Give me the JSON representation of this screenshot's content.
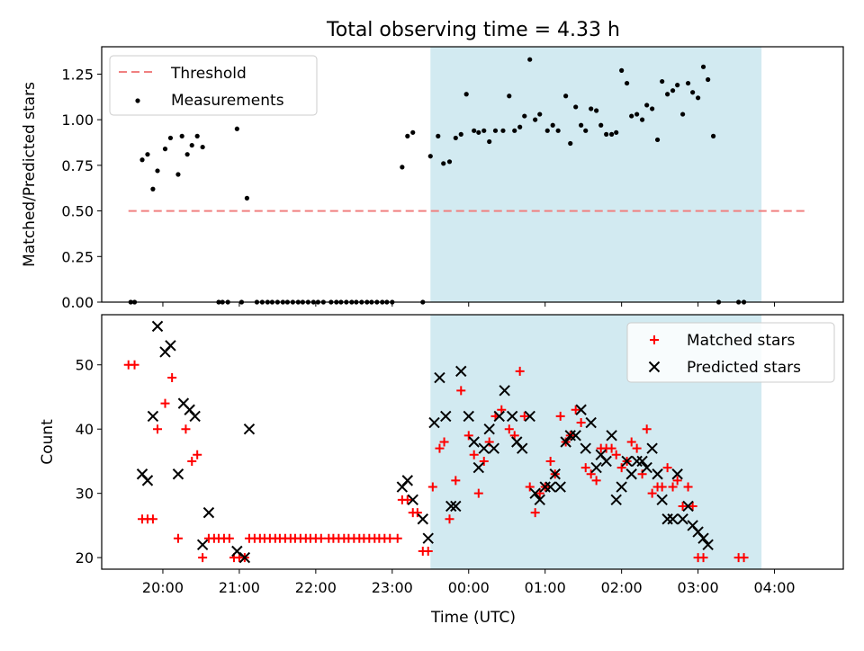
{
  "chart_data": {
    "title": "Total observing time = 4.33 h",
    "xlabel": "Time (UTC)",
    "x_ticks": [
      {
        "h": 20,
        "label": "20:00"
      },
      {
        "h": 21,
        "label": "21:00"
      },
      {
        "h": 22,
        "label": "22:00"
      },
      {
        "h": 23,
        "label": "23:00"
      },
      {
        "h": 24,
        "label": "00:00"
      },
      {
        "h": 25,
        "label": "01:00"
      },
      {
        "h": 26,
        "label": "02:00"
      },
      {
        "h": 27,
        "label": "03:00"
      },
      {
        "h": 28,
        "label": "04:00"
      }
    ],
    "x_unit_note": "time in hours UTC; values above 24 are after midnight",
    "xlim": [
      19.2,
      28.9
    ],
    "shaded_span": {
      "x0": 23.5,
      "x1": 27.83,
      "color": "#add8e6"
    },
    "panels": [
      {
        "type": "scatter",
        "ylabel": "Matched/Predicted stars",
        "ylim": [
          0,
          1.4
        ],
        "yticks": [
          "0.00",
          "0.25",
          "0.50",
          "0.75",
          "1.00",
          "1.25"
        ],
        "legend": {
          "placement": "top-left",
          "threshold_label": "Threshold",
          "measurements_label": "Measurements"
        },
        "threshold": {
          "y": 0.5,
          "x0": 19.55,
          "x1": 28.45,
          "color": "#f08080"
        },
        "measurements": [
          [
            19.58,
            0
          ],
          [
            19.63,
            0
          ],
          [
            19.73,
            0.78
          ],
          [
            19.8,
            0.81
          ],
          [
            19.87,
            0.62
          ],
          [
            19.93,
            0.72
          ],
          [
            20.03,
            0.84
          ],
          [
            20.1,
            0.9
          ],
          [
            20.2,
            0.7
          ],
          [
            20.25,
            0.91
          ],
          [
            20.32,
            0.81
          ],
          [
            20.38,
            0.86
          ],
          [
            20.45,
            0.91
          ],
          [
            20.52,
            0.85
          ],
          [
            20.73,
            0
          ],
          [
            20.78,
            0
          ],
          [
            20.85,
            0
          ],
          [
            20.97,
            0.95
          ],
          [
            21.03,
            0
          ],
          [
            21.1,
            0.57
          ],
          [
            21.23,
            0
          ],
          [
            21.3,
            0
          ],
          [
            21.37,
            0
          ],
          [
            21.43,
            0
          ],
          [
            21.5,
            0
          ],
          [
            21.57,
            0
          ],
          [
            21.63,
            0
          ],
          [
            21.7,
            0
          ],
          [
            21.77,
            0
          ],
          [
            21.83,
            0
          ],
          [
            21.9,
            0
          ],
          [
            21.97,
            0
          ],
          [
            22.03,
            0
          ],
          [
            22.1,
            0
          ],
          [
            22.2,
            0
          ],
          [
            22.27,
            0
          ],
          [
            22.33,
            0
          ],
          [
            22.4,
            0
          ],
          [
            22.47,
            0
          ],
          [
            22.53,
            0
          ],
          [
            22.6,
            0
          ],
          [
            22.67,
            0
          ],
          [
            22.73,
            0
          ],
          [
            22.8,
            0
          ],
          [
            22.87,
            0
          ],
          [
            22.93,
            0
          ],
          [
            23.0,
            0
          ],
          [
            23.13,
            0.74
          ],
          [
            23.2,
            0.91
          ],
          [
            23.27,
            0.93
          ],
          [
            23.4,
            0
          ],
          [
            23.5,
            0.8
          ],
          [
            23.6,
            0.91
          ],
          [
            23.67,
            0.76
          ],
          [
            23.75,
            0.77
          ],
          [
            23.83,
            0.9
          ],
          [
            23.9,
            0.92
          ],
          [
            23.97,
            1.14
          ],
          [
            24.07,
            0.94
          ],
          [
            24.13,
            0.93
          ],
          [
            24.2,
            0.94
          ],
          [
            24.27,
            0.88
          ],
          [
            24.35,
            0.94
          ],
          [
            24.45,
            0.94
          ],
          [
            24.53,
            1.13
          ],
          [
            24.6,
            0.94
          ],
          [
            24.67,
            0.96
          ],
          [
            24.73,
            1.02
          ],
          [
            24.8,
            1.33
          ],
          [
            24.87,
            1.0
          ],
          [
            24.93,
            1.03
          ],
          [
            25.03,
            0.94
          ],
          [
            25.1,
            0.97
          ],
          [
            25.17,
            0.94
          ],
          [
            25.27,
            1.13
          ],
          [
            25.33,
            0.87
          ],
          [
            25.4,
            1.07
          ],
          [
            25.47,
            0.97
          ],
          [
            25.53,
            0.94
          ],
          [
            25.6,
            1.06
          ],
          [
            25.67,
            1.05
          ],
          [
            25.73,
            0.97
          ],
          [
            25.8,
            0.92
          ],
          [
            25.87,
            0.92
          ],
          [
            25.93,
            0.93
          ],
          [
            26.0,
            1.27
          ],
          [
            26.07,
            1.2
          ],
          [
            26.13,
            1.02
          ],
          [
            26.2,
            1.03
          ],
          [
            26.27,
            1.0
          ],
          [
            26.33,
            1.08
          ],
          [
            26.4,
            1.06
          ],
          [
            26.47,
            0.89
          ],
          [
            26.53,
            1.21
          ],
          [
            26.6,
            1.14
          ],
          [
            26.67,
            1.16
          ],
          [
            26.73,
            1.19
          ],
          [
            26.8,
            1.03
          ],
          [
            26.87,
            1.2
          ],
          [
            26.93,
            1.15
          ],
          [
            27.0,
            1.12
          ],
          [
            27.07,
            1.29
          ],
          [
            27.13,
            1.22
          ],
          [
            27.2,
            0.91
          ],
          [
            27.27,
            0
          ],
          [
            27.53,
            0
          ],
          [
            27.6,
            0
          ]
        ]
      },
      {
        "type": "scatter",
        "ylabel": "Count",
        "ylim": [
          18.2,
          57.8
        ],
        "yticks": [
          "20",
          "30",
          "40",
          "50"
        ],
        "legend": {
          "placement": "top-right",
          "matched_label": "Matched stars",
          "predicted_label": "Predicted stars"
        },
        "matched_color": "#ff0000",
        "predicted_color": "#000000",
        "matched": [
          [
            19.55,
            50
          ],
          [
            19.63,
            50
          ],
          [
            19.73,
            26
          ],
          [
            19.8,
            26
          ],
          [
            19.87,
            26
          ],
          [
            19.93,
            40
          ],
          [
            20.03,
            44
          ],
          [
            20.12,
            48
          ],
          [
            20.2,
            23
          ],
          [
            20.3,
            40
          ],
          [
            20.38,
            35
          ],
          [
            20.45,
            36
          ],
          [
            20.52,
            20
          ],
          [
            20.6,
            23
          ],
          [
            20.67,
            23
          ],
          [
            20.73,
            23
          ],
          [
            20.8,
            23
          ],
          [
            20.87,
            23
          ],
          [
            20.93,
            20
          ],
          [
            21.0,
            20
          ],
          [
            21.07,
            20
          ],
          [
            21.13,
            23
          ],
          [
            21.2,
            23
          ],
          [
            21.27,
            23
          ],
          [
            21.33,
            23
          ],
          [
            21.4,
            23
          ],
          [
            21.47,
            23
          ],
          [
            21.53,
            23
          ],
          [
            21.6,
            23
          ],
          [
            21.67,
            23
          ],
          [
            21.73,
            23
          ],
          [
            21.8,
            23
          ],
          [
            21.87,
            23
          ],
          [
            21.93,
            23
          ],
          [
            22.0,
            23
          ],
          [
            22.07,
            23
          ],
          [
            22.17,
            23
          ],
          [
            22.23,
            23
          ],
          [
            22.3,
            23
          ],
          [
            22.37,
            23
          ],
          [
            22.43,
            23
          ],
          [
            22.5,
            23
          ],
          [
            22.57,
            23
          ],
          [
            22.63,
            23
          ],
          [
            22.7,
            23
          ],
          [
            22.77,
            23
          ],
          [
            22.83,
            23
          ],
          [
            22.9,
            23
          ],
          [
            22.97,
            23
          ],
          [
            23.07,
            23
          ],
          [
            23.13,
            29
          ],
          [
            23.2,
            29
          ],
          [
            23.27,
            27
          ],
          [
            23.33,
            27
          ],
          [
            23.4,
            21
          ],
          [
            23.47,
            21
          ],
          [
            23.53,
            31
          ],
          [
            23.62,
            37
          ],
          [
            23.68,
            38
          ],
          [
            23.75,
            26
          ],
          [
            23.83,
            32
          ],
          [
            23.9,
            46
          ],
          [
            24.0,
            39
          ],
          [
            24.07,
            36
          ],
          [
            24.13,
            30
          ],
          [
            24.2,
            35
          ],
          [
            24.27,
            38
          ],
          [
            24.35,
            42
          ],
          [
            24.43,
            43
          ],
          [
            24.53,
            40
          ],
          [
            24.6,
            39
          ],
          [
            24.67,
            49
          ],
          [
            24.73,
            42
          ],
          [
            24.8,
            31
          ],
          [
            24.87,
            27
          ],
          [
            24.93,
            30
          ],
          [
            25.0,
            31
          ],
          [
            25.07,
            35
          ],
          [
            25.13,
            33
          ],
          [
            25.2,
            42
          ],
          [
            25.27,
            38
          ],
          [
            25.33,
            39
          ],
          [
            25.4,
            43
          ],
          [
            25.47,
            41
          ],
          [
            25.53,
            34
          ],
          [
            25.6,
            33
          ],
          [
            25.67,
            32
          ],
          [
            25.73,
            37
          ],
          [
            25.8,
            37
          ],
          [
            25.87,
            37
          ],
          [
            25.93,
            36
          ],
          [
            26.0,
            34
          ],
          [
            26.07,
            35
          ],
          [
            26.13,
            38
          ],
          [
            26.2,
            37
          ],
          [
            26.27,
            33
          ],
          [
            26.33,
            40
          ],
          [
            26.4,
            30
          ],
          [
            26.47,
            31
          ],
          [
            26.53,
            31
          ],
          [
            26.6,
            34
          ],
          [
            26.67,
            31
          ],
          [
            26.73,
            32
          ],
          [
            26.8,
            28
          ],
          [
            26.87,
            31
          ],
          [
            26.93,
            28
          ],
          [
            27.0,
            20
          ],
          [
            27.07,
            20
          ],
          [
            27.53,
            20
          ],
          [
            27.6,
            20
          ]
        ],
        "predicted": [
          [
            19.73,
            33
          ],
          [
            19.8,
            32
          ],
          [
            19.87,
            42
          ],
          [
            19.93,
            56
          ],
          [
            20.03,
            52
          ],
          [
            20.1,
            53
          ],
          [
            20.2,
            33
          ],
          [
            20.27,
            44
          ],
          [
            20.35,
            43
          ],
          [
            20.42,
            42
          ],
          [
            20.52,
            22
          ],
          [
            20.6,
            27
          ],
          [
            20.97,
            21
          ],
          [
            21.07,
            20
          ],
          [
            21.13,
            40
          ],
          [
            23.13,
            31
          ],
          [
            23.2,
            32
          ],
          [
            23.27,
            29
          ],
          [
            23.4,
            26
          ],
          [
            23.47,
            23
          ],
          [
            23.55,
            41
          ],
          [
            23.62,
            48
          ],
          [
            23.7,
            42
          ],
          [
            23.77,
            28
          ],
          [
            23.83,
            28
          ],
          [
            23.9,
            49
          ],
          [
            24.0,
            42
          ],
          [
            24.07,
            38
          ],
          [
            24.13,
            34
          ],
          [
            24.2,
            37
          ],
          [
            24.27,
            40
          ],
          [
            24.33,
            37
          ],
          [
            24.4,
            42
          ],
          [
            24.47,
            46
          ],
          [
            24.57,
            42
          ],
          [
            24.63,
            38
          ],
          [
            24.7,
            37
          ],
          [
            24.8,
            42
          ],
          [
            24.87,
            30
          ],
          [
            24.93,
            29
          ],
          [
            25.0,
            31
          ],
          [
            25.07,
            31
          ],
          [
            25.13,
            33
          ],
          [
            25.2,
            31
          ],
          [
            25.27,
            38
          ],
          [
            25.33,
            39
          ],
          [
            25.4,
            39
          ],
          [
            25.47,
            43
          ],
          [
            25.53,
            37
          ],
          [
            25.6,
            41
          ],
          [
            25.67,
            34
          ],
          [
            25.73,
            36
          ],
          [
            25.8,
            35
          ],
          [
            25.87,
            39
          ],
          [
            25.93,
            29
          ],
          [
            26.0,
            31
          ],
          [
            26.07,
            35
          ],
          [
            26.13,
            33
          ],
          [
            26.2,
            35
          ],
          [
            26.27,
            35
          ],
          [
            26.33,
            34
          ],
          [
            26.4,
            37
          ],
          [
            26.47,
            33
          ],
          [
            26.53,
            29
          ],
          [
            26.6,
            26
          ],
          [
            26.67,
            26
          ],
          [
            26.73,
            33
          ],
          [
            26.8,
            26
          ],
          [
            26.87,
            28
          ],
          [
            26.93,
            25
          ],
          [
            27.0,
            24
          ],
          [
            27.07,
            23
          ],
          [
            27.13,
            22
          ]
        ]
      }
    ]
  }
}
